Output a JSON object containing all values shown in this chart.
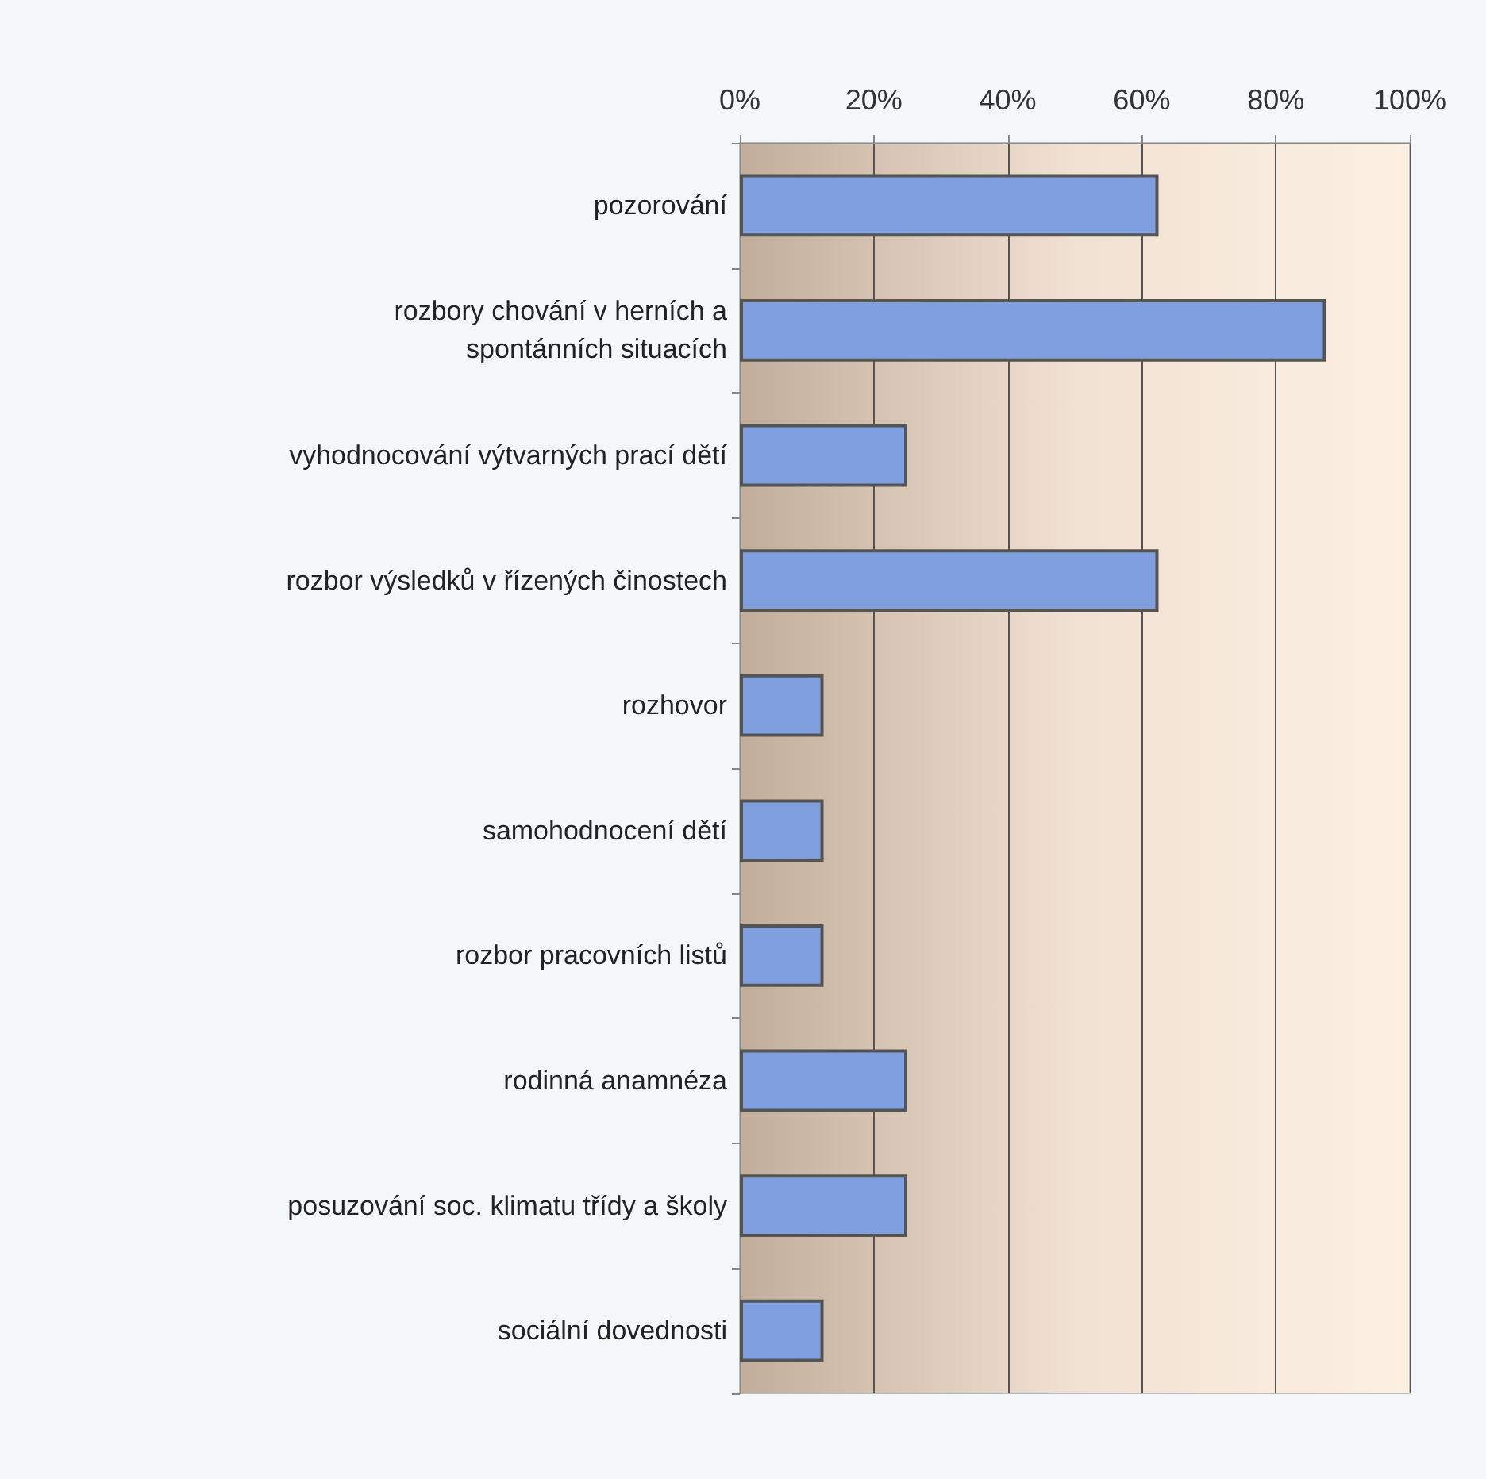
{
  "chart_data": {
    "type": "bar",
    "orientation": "horizontal",
    "categories": [
      "pozorování",
      "rozbory chování v herních a\nspontánních situacích",
      "vyhodnocování výtvarných prací dětí",
      "rozbor výsledků v řízených činostech",
      "rozhovor",
      "samohodnocení dětí",
      "rozbor pracovních listů",
      "rodinná anamnéza",
      "posuzování soc. klimatu třídy a školy",
      "sociální dovednosti"
    ],
    "values": [
      62.5,
      87.5,
      25,
      62.5,
      12.5,
      12.5,
      12.5,
      25,
      25,
      12.5
    ],
    "color": "#7f9fdf",
    "xlim": [
      0,
      100
    ],
    "xticks": [
      {
        "value": 0,
        "label": "0%"
      },
      {
        "value": 20,
        "label": "20%"
      },
      {
        "value": 40,
        "label": "40%"
      },
      {
        "value": 60,
        "label": "60%"
      },
      {
        "value": 80,
        "label": "80%"
      },
      {
        "value": 100,
        "label": "100%"
      }
    ],
    "grid": "x"
  }
}
